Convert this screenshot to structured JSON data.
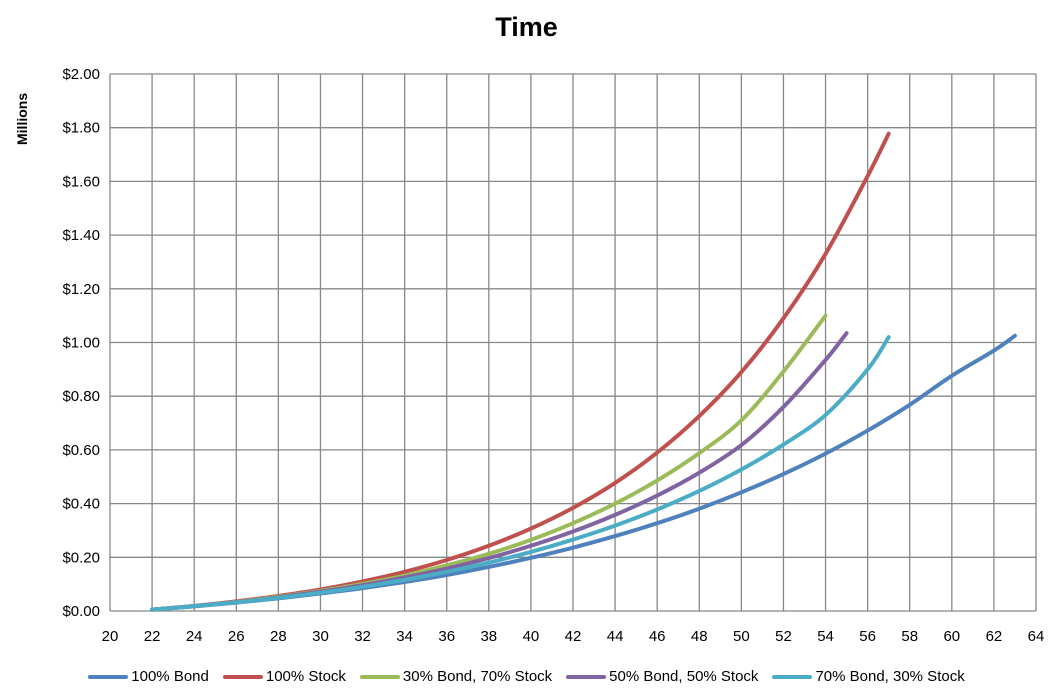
{
  "chart_data": {
    "type": "line",
    "title": "Time",
    "xlabel": "",
    "ylabel": "Millions",
    "xlim": [
      20,
      64
    ],
    "ylim": [
      0,
      2.0
    ],
    "x_ticks": [
      "20",
      "22",
      "24",
      "26",
      "28",
      "30",
      "32",
      "34",
      "36",
      "38",
      "40",
      "42",
      "44",
      "46",
      "48",
      "50",
      "52",
      "54",
      "56",
      "58",
      "60",
      "62",
      "64"
    ],
    "y_ticks": [
      "$0.00",
      "$0.20",
      "$0.40",
      "$0.60",
      "$0.80",
      "$1.00",
      "$1.20",
      "$1.40",
      "$1.60",
      "$1.80",
      "$2.00"
    ],
    "grid": true,
    "legend_position": "bottom",
    "series": [
      {
        "name": "100% Bond",
        "color": "#4f81bd",
        "x": [
          22,
          24,
          26,
          28,
          30,
          32,
          34,
          36,
          38,
          40,
          42,
          44,
          46,
          48,
          50,
          52,
          54,
          56,
          58,
          60,
          62,
          63
        ],
        "values": [
          0.005,
          0.017,
          0.031,
          0.047,
          0.065,
          0.085,
          0.108,
          0.134,
          0.164,
          0.198,
          0.236,
          0.279,
          0.327,
          0.381,
          0.442,
          0.51,
          0.586,
          0.672,
          0.768,
          0.876,
          0.97,
          1.025
        ]
      },
      {
        "name": "100% Stock",
        "color": "#c0504d",
        "x": [
          22,
          24,
          26,
          28,
          30,
          32,
          34,
          36,
          38,
          40,
          42,
          44,
          46,
          48,
          50,
          52,
          54,
          56,
          57
        ],
        "values": [
          0.005,
          0.019,
          0.036,
          0.056,
          0.08,
          0.11,
          0.146,
          0.19,
          0.243,
          0.307,
          0.384,
          0.477,
          0.59,
          0.726,
          0.89,
          1.09,
          1.33,
          1.62,
          1.778
        ]
      },
      {
        "name": "30% Bond, 70% Stock",
        "color": "#9bbb59",
        "x": [
          22,
          24,
          26,
          28,
          30,
          32,
          34,
          36,
          38,
          40,
          42,
          44,
          46,
          48,
          50,
          52,
          54
        ],
        "values": [
          0.005,
          0.018,
          0.034,
          0.053,
          0.075,
          0.101,
          0.132,
          0.17,
          0.213,
          0.265,
          0.327,
          0.4,
          0.486,
          0.588,
          0.71,
          0.892,
          1.1
        ]
      },
      {
        "name": "50% Bond, 50% Stock",
        "color": "#8064a2",
        "x": [
          22,
          24,
          26,
          28,
          30,
          32,
          34,
          36,
          38,
          40,
          42,
          44,
          46,
          48,
          50,
          52,
          54,
          55
        ],
        "values": [
          0.005,
          0.018,
          0.033,
          0.051,
          0.072,
          0.096,
          0.125,
          0.158,
          0.197,
          0.243,
          0.296,
          0.358,
          0.43,
          0.515,
          0.618,
          0.76,
          0.935,
          1.035
        ]
      },
      {
        "name": "70% Bond, 30% Stock",
        "color": "#4bacc6",
        "x": [
          22,
          24,
          26,
          28,
          30,
          32,
          34,
          36,
          38,
          40,
          42,
          44,
          46,
          48,
          50,
          52,
          54,
          56,
          57
        ],
        "values": [
          0.005,
          0.018,
          0.032,
          0.049,
          0.068,
          0.09,
          0.116,
          0.146,
          0.18,
          0.22,
          0.266,
          0.318,
          0.378,
          0.447,
          0.527,
          0.62,
          0.73,
          0.9,
          1.02
        ]
      }
    ]
  },
  "colors": {
    "grid": "#878787",
    "text": "#000000",
    "background": "#ffffff"
  }
}
